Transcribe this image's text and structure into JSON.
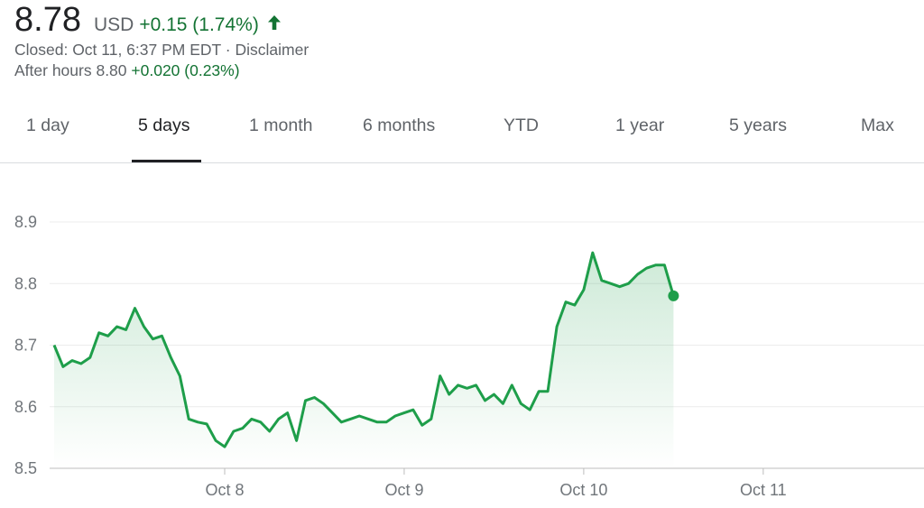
{
  "quote": {
    "price": "8.78",
    "currency": "USD",
    "change": "+0.15 (1.74%)",
    "trend_icon": "arrow-up-icon",
    "closed_text": "Closed: Oct 11, 6:37 PM EDT",
    "separator": " · ",
    "disclaimer": "Disclaimer",
    "after_hours_label": "After hours 8.80",
    "after_hours_change": "+0.020 (0.23%)"
  },
  "tabs": [
    {
      "label": "1 day"
    },
    {
      "label": "5 days"
    },
    {
      "label": "1 month"
    },
    {
      "label": "6 months"
    },
    {
      "label": "YTD"
    },
    {
      "label": "1 year"
    },
    {
      "label": "5 years"
    },
    {
      "label": "Max"
    }
  ],
  "active_tab": "5 days",
  "colors": {
    "line": "#1e9e4a",
    "positive_text": "#137333",
    "grid": "#ececec"
  },
  "chart_data": {
    "type": "area",
    "title": "",
    "xlabel": "",
    "ylabel": "",
    "ylim": [
      8.5,
      8.9
    ],
    "yticks": [
      "8.5",
      "8.6",
      "8.7",
      "8.8",
      "8.9"
    ],
    "xlim": [
      0,
      95
    ],
    "xticks": [
      {
        "label": "Oct 8",
        "x": 19
      },
      {
        "label": "Oct 9",
        "x": 39
      },
      {
        "label": "Oct 10",
        "x": 59
      },
      {
        "label": "Oct 11",
        "x": 79
      }
    ],
    "grid": true,
    "legend": "none",
    "series": [
      {
        "values": [
          8.7,
          8.665,
          8.675,
          8.67,
          8.68,
          8.72,
          8.715,
          8.73,
          8.725,
          8.76,
          8.73,
          8.71,
          8.715,
          8.68,
          8.65,
          8.58,
          8.575,
          8.572,
          8.545,
          8.535,
          8.56,
          8.565,
          8.58,
          8.575,
          8.56,
          8.58,
          8.59,
          8.545,
          8.61,
          8.615,
          8.605,
          8.59,
          8.575,
          8.58,
          8.585,
          8.58,
          8.575,
          8.575,
          8.585,
          8.59,
          8.595,
          8.57,
          8.58,
          8.65,
          8.62,
          8.635,
          8.63,
          8.635,
          8.61,
          8.62,
          8.605,
          8.635,
          8.605,
          8.595,
          8.625,
          8.625,
          8.73,
          8.77,
          8.765,
          8.79,
          8.85,
          8.805,
          8.8,
          8.795,
          8.8,
          8.815,
          8.825,
          8.83,
          8.83,
          8.78
        ],
        "x": [
          0,
          1,
          2,
          3,
          4,
          5,
          6,
          7,
          8,
          9,
          10,
          11,
          12,
          13,
          14,
          15,
          16,
          17,
          18,
          19,
          20,
          21,
          22,
          23,
          24,
          25,
          26,
          27,
          28,
          29,
          30,
          31,
          32,
          33,
          34,
          35,
          36,
          37,
          38,
          39,
          40,
          41,
          42,
          43,
          44,
          45,
          46,
          47,
          48,
          49,
          50,
          51,
          52,
          53,
          54,
          55,
          56,
          57,
          58,
          59,
          60,
          61,
          62,
          63,
          64,
          65,
          66,
          67,
          68,
          69
        ]
      }
    ]
  }
}
